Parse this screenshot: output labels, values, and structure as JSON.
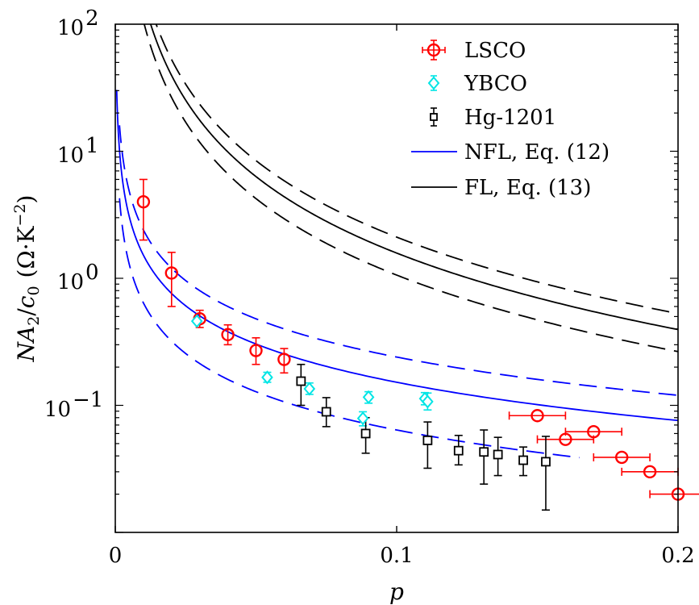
{
  "chart_data": {
    "type": "scatter",
    "title": "",
    "xlabel": "p",
    "ylabel_parts": {
      "N": "N",
      "A": "A",
      "sub": "2",
      "slash": "/",
      "c": "c",
      "c_sub": "0",
      "unit": "(Ω·K",
      "unit_exp": "−2",
      "close": ")"
    },
    "xlim": [
      0,
      0.2
    ],
    "ylim": [
      0.01,
      100
    ],
    "yscale": "log",
    "x_ticks": [
      {
        "value": 0,
        "label": "0"
      },
      {
        "value": 0.1,
        "label": "0.1"
      },
      {
        "value": 0.2,
        "label": "0.2"
      }
    ],
    "y_ticks": [
      {
        "value": 0.1,
        "base": "10",
        "exp": "−1"
      },
      {
        "value": 1,
        "base": "10",
        "exp": "0"
      },
      {
        "value": 10,
        "base": "10",
        "exp": "1"
      },
      {
        "value": 100,
        "base": "10",
        "exp": "2"
      }
    ],
    "legend_position": "top-right",
    "colors": {
      "lsco": "#ff0000",
      "ybco": "#00e5e5",
      "hg": "#000000",
      "nfl": "#0000ff",
      "fl": "#000000"
    },
    "series": [
      {
        "name": "LSCO",
        "kind": "points",
        "marker": "circle",
        "points": [
          {
            "x": 0.01,
            "y": 4.0,
            "ylo": 2.0,
            "yhi": 6.0
          },
          {
            "x": 0.02,
            "y": 1.1,
            "ylo": 0.6,
            "yhi": 1.6
          },
          {
            "x": 0.03,
            "y": 0.48,
            "ylo": 0.41,
            "yhi": 0.56
          },
          {
            "x": 0.04,
            "y": 0.36,
            "ylo": 0.3,
            "yhi": 0.43
          },
          {
            "x": 0.05,
            "y": 0.27,
            "ylo": 0.21,
            "yhi": 0.34
          },
          {
            "x": 0.06,
            "y": 0.23,
            "ylo": 0.18,
            "yhi": 0.28
          },
          {
            "x": 0.15,
            "y": 0.083,
            "xlo": 0.14,
            "xhi": 0.16
          },
          {
            "x": 0.16,
            "y": 0.054,
            "xlo": 0.15,
            "xhi": 0.17
          },
          {
            "x": 0.17,
            "y": 0.062,
            "xlo": 0.16,
            "xhi": 0.18
          },
          {
            "x": 0.18,
            "y": 0.039,
            "xlo": 0.17,
            "xhi": 0.19
          },
          {
            "x": 0.19,
            "y": 0.03,
            "xlo": 0.18,
            "xhi": 0.2
          },
          {
            "x": 0.2,
            "y": 0.02,
            "xlo": 0.19,
            "xhi": 0.21
          }
        ]
      },
      {
        "name": "YBCO",
        "kind": "points",
        "marker": "diamond",
        "points": [
          {
            "x": 0.029,
            "y": 0.46
          },
          {
            "x": 0.054,
            "y": 0.166,
            "ylo": 0.152,
            "yhi": 0.182
          },
          {
            "x": 0.069,
            "y": 0.135,
            "ylo": 0.122,
            "yhi": 0.15
          },
          {
            "x": 0.088,
            "y": 0.079,
            "ylo": 0.069,
            "yhi": 0.089
          },
          {
            "x": 0.09,
            "y": 0.116,
            "ylo": 0.104,
            "yhi": 0.128
          },
          {
            "x": 0.11,
            "y": 0.113,
            "ylo": 0.101,
            "yhi": 0.126
          },
          {
            "x": 0.111,
            "y": 0.107,
            "ylo": 0.092,
            "yhi": 0.125
          }
        ]
      },
      {
        "name": "Hg-1201",
        "kind": "points",
        "marker": "square",
        "points": [
          {
            "x": 0.066,
            "y": 0.155,
            "ylo": 0.1,
            "yhi": 0.21
          },
          {
            "x": 0.075,
            "y": 0.089,
            "ylo": 0.068,
            "yhi": 0.115
          },
          {
            "x": 0.089,
            "y": 0.06,
            "ylo": 0.042,
            "yhi": 0.08
          },
          {
            "x": 0.111,
            "y": 0.053,
            "ylo": 0.032,
            "yhi": 0.074
          },
          {
            "x": 0.122,
            "y": 0.044,
            "ylo": 0.034,
            "yhi": 0.058
          },
          {
            "x": 0.131,
            "y": 0.043,
            "ylo": 0.024,
            "yhi": 0.064
          },
          {
            "x": 0.136,
            "y": 0.041,
            "ylo": 0.028,
            "yhi": 0.056
          },
          {
            "x": 0.145,
            "y": 0.037,
            "ylo": 0.028,
            "yhi": 0.047
          },
          {
            "x": 0.153,
            "y": 0.036,
            "ylo": 0.015,
            "yhi": 0.057
          }
        ]
      },
      {
        "name": "NFL, Eq. (12)",
        "kind": "curve",
        "color_key": "nfl",
        "curves": [
          {
            "style": "solid",
            "A": 0.0152,
            "alpha": 1,
            "xmin": 0.0005,
            "xmax": 0.2
          },
          {
            "style": "dashed",
            "A": 0.024,
            "alpha": 1,
            "xmin": 0.0015,
            "xmax": 0.2
          },
          {
            "style": "dashed",
            "A": 0.0064,
            "alpha": 1,
            "xmin": 0.0015,
            "xmax": 0.165
          }
        ]
      },
      {
        "name": "FL, Eq. (13)",
        "kind": "curve",
        "color_key": "fl",
        "curves": [
          {
            "style": "solid",
            "A": 0.0158,
            "alpha": 2,
            "xmin": 0.0115,
            "xmax": 0.2
          },
          {
            "style": "dashed",
            "A": 0.0211,
            "alpha": 2,
            "xmin": 0.0128,
            "xmax": 0.2
          },
          {
            "style": "dashed",
            "A": 0.0106,
            "alpha": 2,
            "xmin": 0.0098,
            "xmax": 0.2
          }
        ]
      }
    ]
  }
}
